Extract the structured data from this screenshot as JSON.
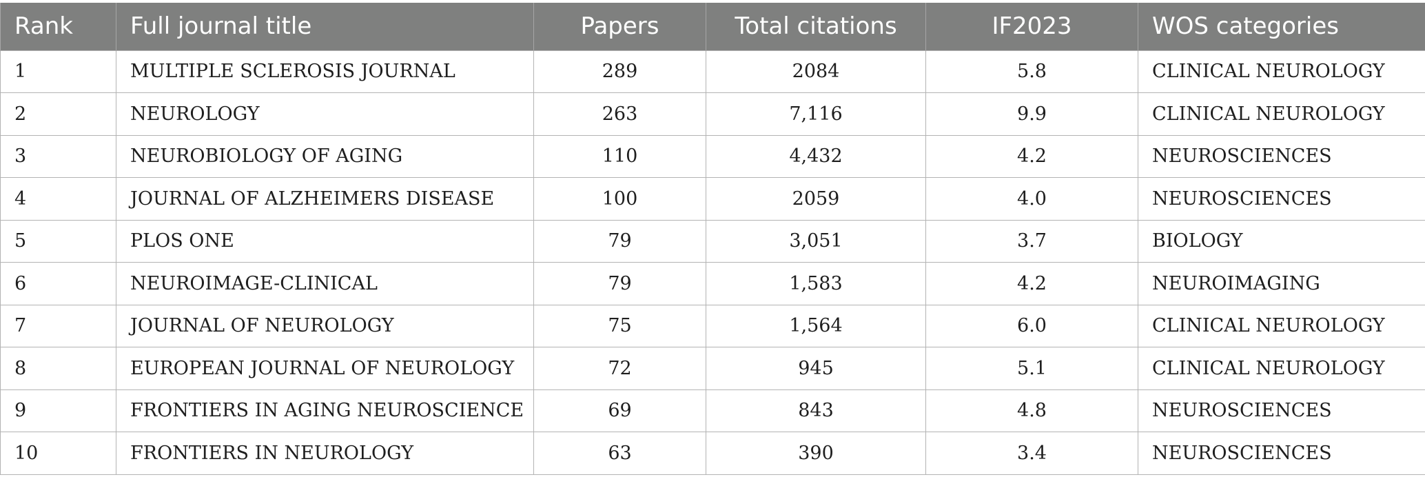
{
  "table": {
    "headers": {
      "rank": "Rank",
      "title": "Full journal title",
      "papers": "Papers",
      "citations": "Total citations",
      "if": "IF2023",
      "wos": "WOS categories"
    },
    "rows": [
      {
        "rank": "1",
        "title": "MULTIPLE SCLEROSIS JOURNAL",
        "papers": "289",
        "citations": "2084",
        "if": "5.8",
        "wos": "CLINICAL NEUROLOGY"
      },
      {
        "rank": "2",
        "title": "NEUROLOGY",
        "papers": "263",
        "citations": "7,116",
        "if": "9.9",
        "wos": "CLINICAL NEUROLOGY"
      },
      {
        "rank": "3",
        "title": "NEUROBIOLOGY OF AGING",
        "papers": "110",
        "citations": "4,432",
        "if": "4.2",
        "wos": "NEUROSCIENCES"
      },
      {
        "rank": "4",
        "title": "JOURNAL OF ALZHEIMERS DISEASE",
        "papers": "100",
        "citations": "2059",
        "if": "4.0",
        "wos": "NEUROSCIENCES"
      },
      {
        "rank": "5",
        "title": "PLOS ONE",
        "papers": "79",
        "citations": "3,051",
        "if": "3.7",
        "wos": "BIOLOGY"
      },
      {
        "rank": "6",
        "title": "NEUROIMAGE-CLINICAL",
        "papers": "79",
        "citations": "1,583",
        "if": "4.2",
        "wos": "NEUROIMAGING"
      },
      {
        "rank": "7",
        "title": "JOURNAL OF NEUROLOGY",
        "papers": "75",
        "citations": "1,564",
        "if": "6.0",
        "wos": "CLINICAL NEUROLOGY"
      },
      {
        "rank": "8",
        "title": "EUROPEAN JOURNAL OF NEUROLOGY",
        "papers": "72",
        "citations": "945",
        "if": "5.1",
        "wos": "CLINICAL NEUROLOGY"
      },
      {
        "rank": "9",
        "title": "FRONTIERS IN AGING NEUROSCIENCE",
        "papers": "69",
        "citations": "843",
        "if": "4.8",
        "wos": "NEUROSCIENCES"
      },
      {
        "rank": "10",
        "title": "FRONTIERS IN NEUROLOGY",
        "papers": "63",
        "citations": "390",
        "if": "3.4",
        "wos": "NEUROSCIENCES"
      }
    ]
  },
  "colors": {
    "header_bg": "#7f807f",
    "header_text": "#ffffff",
    "grid": "#b3b3b3",
    "body_text": "#1e1e1e"
  }
}
